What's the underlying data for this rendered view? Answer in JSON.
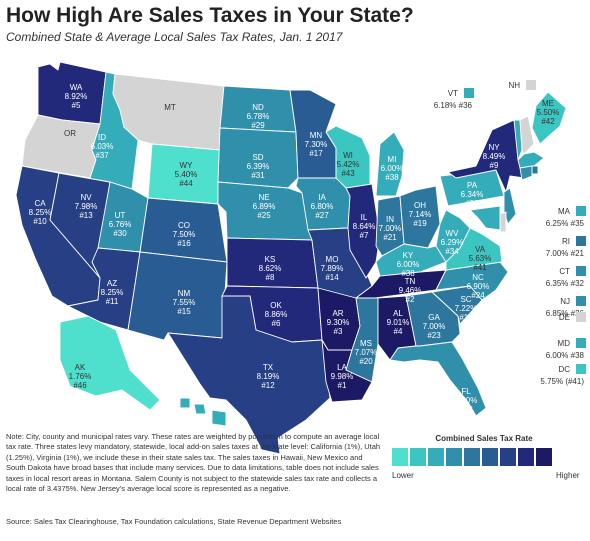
{
  "header": {
    "title": "How High Are Sales Taxes in Your State?",
    "subtitle": "Combined State & Average Local Sales Tax Rates, Jan. 1 2017"
  },
  "palette": [
    "#4ee0cc",
    "#3cc6c1",
    "#35acb9",
    "#3090ac",
    "#2d779f",
    "#2a5c94",
    "#263f85",
    "#22287a",
    "#1c1a64"
  ],
  "no_tax_color": "#d4d4d4",
  "states": [
    {
      "abbr": "WA",
      "rate": "8.92%",
      "rank": "#5",
      "level": 7
    },
    {
      "abbr": "OR",
      "rate": "",
      "rank": "",
      "level": -1
    },
    {
      "abbr": "CA",
      "rate": "8.25%",
      "rank": "#10",
      "level": 6
    },
    {
      "abbr": "NV",
      "rate": "7.98%",
      "rank": "#13",
      "level": 6
    },
    {
      "abbr": "ID",
      "rate": "6.03%",
      "rank": "#37",
      "level": 2
    },
    {
      "abbr": "MT",
      "rate": "",
      "rank": "",
      "level": -1
    },
    {
      "abbr": "WY",
      "rate": "5.40%",
      "rank": "#44",
      "level": 0
    },
    {
      "abbr": "UT",
      "rate": "6.76%",
      "rank": "#30",
      "level": 3
    },
    {
      "abbr": "AZ",
      "rate": "8.25%",
      "rank": "#11",
      "level": 6
    },
    {
      "abbr": "CO",
      "rate": "7.50%",
      "rank": "#16",
      "level": 5
    },
    {
      "abbr": "NM",
      "rate": "7.55%",
      "rank": "#15",
      "level": 5
    },
    {
      "abbr": "ND",
      "rate": "6.78%",
      "rank": "#29",
      "level": 3
    },
    {
      "abbr": "SD",
      "rate": "6.39%",
      "rank": "#31",
      "level": 3
    },
    {
      "abbr": "NE",
      "rate": "6.89%",
      "rank": "#25",
      "level": 3
    },
    {
      "abbr": "KS",
      "rate": "8.62%",
      "rank": "#8",
      "level": 7
    },
    {
      "abbr": "OK",
      "rate": "8.86%",
      "rank": "#6",
      "level": 7
    },
    {
      "abbr": "TX",
      "rate": "8.19%",
      "rank": "#12",
      "level": 6
    },
    {
      "abbr": "MN",
      "rate": "7.30%",
      "rank": "#17",
      "level": 5
    },
    {
      "abbr": "IA",
      "rate": "6.80%",
      "rank": "#27",
      "level": 3
    },
    {
      "abbr": "MO",
      "rate": "7.89%",
      "rank": "#14",
      "level": 6
    },
    {
      "abbr": "AR",
      "rate": "9.30%",
      "rank": "#3",
      "level": 8
    },
    {
      "abbr": "LA",
      "rate": "9.98%",
      "rank": "#1",
      "level": 8
    },
    {
      "abbr": "WI",
      "rate": "5.42%",
      "rank": "#43",
      "level": 1
    },
    {
      "abbr": "IL",
      "rate": "8.64%",
      "rank": "#7",
      "level": 7
    },
    {
      "abbr": "MI",
      "rate": "6.00%",
      "rank": "#38",
      "level": 2
    },
    {
      "abbr": "IN",
      "rate": "7.00%",
      "rank": "#21",
      "level": 4
    },
    {
      "abbr": "OH",
      "rate": "7.14%",
      "rank": "#19",
      "level": 4
    },
    {
      "abbr": "KY",
      "rate": "6.00%",
      "rank": "#38",
      "level": 2
    },
    {
      "abbr": "TN",
      "rate": "9.46%",
      "rank": "#2",
      "level": 8
    },
    {
      "abbr": "MS",
      "rate": "7.07%",
      "rank": "#20",
      "level": 4
    },
    {
      "abbr": "AL",
      "rate": "9.01%",
      "rank": "#4",
      "level": 8
    },
    {
      "abbr": "GA",
      "rate": "7.00%",
      "rank": "#23",
      "level": 4
    },
    {
      "abbr": "FL",
      "rate": "6.80%",
      "rank": "#28",
      "level": 3
    },
    {
      "abbr": "SC",
      "rate": "7.22%",
      "rank": "#18",
      "level": 4
    },
    {
      "abbr": "NC",
      "rate": "6.90%",
      "rank": "#24",
      "level": 3
    },
    {
      "abbr": "VA",
      "rate": "5.63%",
      "rank": "#41",
      "level": 1
    },
    {
      "abbr": "WV",
      "rate": "6.29%",
      "rank": "#34",
      "level": 2
    },
    {
      "abbr": "PA",
      "rate": "6.34%",
      "rank": "#33",
      "level": 2
    },
    {
      "abbr": "NY",
      "rate": "8.49%",
      "rank": "#9",
      "level": 7
    },
    {
      "abbr": "ME",
      "rate": "5.50%",
      "rank": "#42",
      "level": 1
    },
    {
      "abbr": "VT",
      "rate": "6.18%",
      "rank": "#36",
      "level": 2
    },
    {
      "abbr": "NH",
      "rate": "",
      "rank": "",
      "level": -1
    },
    {
      "abbr": "MA",
      "rate": "6.25%",
      "rank": "#35",
      "level": 2
    },
    {
      "abbr": "RI",
      "rate": "7.00%",
      "rank": "#21",
      "level": 4
    },
    {
      "abbr": "CT",
      "rate": "6.35%",
      "rank": "#32",
      "level": 3
    },
    {
      "abbr": "NJ",
      "rate": "6.85%",
      "rank": "#26",
      "level": 3
    },
    {
      "abbr": "DE",
      "rate": "",
      "rank": "",
      "level": -1
    },
    {
      "abbr": "MD",
      "rate": "6.00%",
      "rank": "#38",
      "level": 2
    },
    {
      "abbr": "DC",
      "rate": "5.75%",
      "rank": "(#41)",
      "level": 1
    },
    {
      "abbr": "AK",
      "rate": "1.76%",
      "rank": "#46",
      "level": 0
    },
    {
      "abbr": "HI",
      "rate": "",
      "rank": "",
      "level": 2
    }
  ],
  "legend": {
    "title": "Combined Sales Tax Rate",
    "low": "Lower",
    "high": "Higher"
  },
  "note": "Note: City, county and municipal rates vary. These rates are weighted by population to compute an average local tax rate. Three states levy mandatory, statewide, local add-on sales taxes at the state level: California (1%), Utah (1.25%), Virginia (1%), we include these in their state sales tax. The sales taxes in Hawaii, New Mexico and South Dakota have broad bases that include many services. Due to data limitations, table does not include sales taxes in local resort areas in Montana. Salem County is not subject to the statewide sales tax rate and collects a local rate of 3.4375%. New Jersey's average local score is represented as a negative.",
  "source": "Source: Sales Tax Clearinghouse, Tax Foundation calculations, State Revenue Department Websites"
}
